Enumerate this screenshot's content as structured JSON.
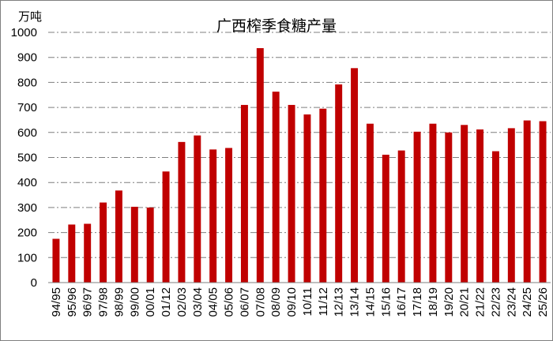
{
  "chart_data": {
    "type": "bar",
    "title": "广西榨季食糖产量",
    "ylabel": "万吨",
    "xlabel": "",
    "ylim": [
      0,
      1000
    ],
    "ytick_step": 100,
    "grid": true,
    "bar_color": "#C00000",
    "categories": [
      "94/95",
      "95/96",
      "96/97",
      "97/98",
      "98/99",
      "99/00",
      "00/01",
      "01/12",
      "02/03",
      "03/04",
      "04/05",
      "05/06",
      "06/07",
      "07/08",
      "08/09",
      "09/10",
      "10/11",
      "11/12",
      "12/13",
      "13/14",
      "14/15",
      "15/16",
      "16/17",
      "17/18",
      "18/19",
      "19/20",
      "20/21",
      "21/22",
      "22/23",
      "23/24",
      "24/25",
      "25/26"
    ],
    "values": [
      175,
      232,
      235,
      320,
      368,
      303,
      300,
      444,
      562,
      588,
      532,
      538,
      710,
      937,
      763,
      710,
      672,
      695,
      792,
      857,
      635,
      511,
      528,
      603,
      635,
      600,
      630,
      612,
      525,
      617,
      648,
      645
    ]
  }
}
